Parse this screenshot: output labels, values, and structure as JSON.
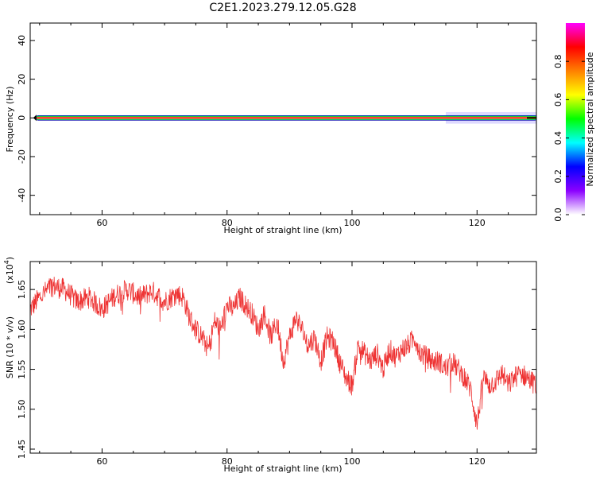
{
  "title": "C2E1.2023.279.12.05.G28",
  "chart_data": [
    {
      "type": "heatmap",
      "xlabel": "Height of straight line (km)",
      "ylabel": "Frequency (Hz)",
      "xlim": [
        48.5,
        129.5
      ],
      "ylim": [
        -50,
        49
      ],
      "xticks": [
        60,
        80,
        100,
        120
      ],
      "xtick_labels": [
        "60",
        "80",
        "100",
        "120"
      ],
      "yticks": [
        -40,
        -20,
        0,
        20,
        40
      ],
      "ytick_labels": [
        "-40",
        "-20",
        "0",
        "20",
        "40"
      ],
      "band": {
        "center_hz": 0,
        "half_width_hz": 1.2,
        "start_km": 49.5,
        "end_km": 129.5
      },
      "grid": false,
      "colorbar": {
        "label": "Normalized spectral amplitude",
        "range": [
          0,
          1
        ],
        "ticks": [
          0.0,
          0.2,
          0.4,
          0.6,
          0.8
        ],
        "tick_labels": [
          "0.0",
          "0.2",
          "0.4",
          "0.6",
          "0.8"
        ],
        "colors": [
          "#ffffff",
          "#8b00ff",
          "#0000ff",
          "#00ffff",
          "#00ff00",
          "#ffff00",
          "#ff8000",
          "#ff0000",
          "#ff00ff"
        ]
      }
    },
    {
      "type": "line",
      "xlabel": "Height of straight line (km)",
      "ylabel": "SNR (10 * v/v)",
      "multiplier_label": "(x10",
      "multiplier_exp": "4",
      "multiplier_close": ")",
      "xlim": [
        48.5,
        129.5
      ],
      "ylim": [
        1.445,
        1.685
      ],
      "xticks": [
        60,
        80,
        100,
        120
      ],
      "xtick_labels": [
        "60",
        "80",
        "100",
        "120"
      ],
      "yticks": [
        1.45,
        1.5,
        1.55,
        1.6,
        1.65
      ],
      "ytick_labels": [
        "1.45",
        "1.50",
        "1.55",
        "1.60",
        "1.65"
      ],
      "color": "#ee3333",
      "grid": false,
      "series": [
        {
          "x": [
            48.5,
            50,
            52,
            54,
            56,
            58,
            60,
            62,
            64,
            66,
            68,
            70,
            72,
            73,
            74,
            75,
            76,
            77,
            78,
            79,
            80,
            81,
            82,
            83,
            84,
            85,
            86,
            87,
            88,
            89,
            90,
            91,
            92,
            93,
            94,
            95,
            96,
            97,
            98,
            99,
            100,
            101,
            102,
            103,
            104,
            105,
            106,
            107,
            108,
            109,
            110,
            111,
            112,
            113,
            114,
            115,
            116,
            117,
            118,
            119,
            120,
            121,
            122,
            123,
            124,
            125,
            126,
            127,
            128,
            129.5
          ],
          "y": [
            1.625,
            1.64,
            1.655,
            1.65,
            1.635,
            1.64,
            1.625,
            1.642,
            1.65,
            1.64,
            1.648,
            1.635,
            1.645,
            1.64,
            1.615,
            1.6,
            1.59,
            1.575,
            1.61,
            1.6,
            1.63,
            1.625,
            1.64,
            1.63,
            1.62,
            1.6,
            1.62,
            1.59,
            1.61,
            1.56,
            1.59,
            1.615,
            1.6,
            1.58,
            1.59,
            1.56,
            1.59,
            1.585,
            1.56,
            1.54,
            1.53,
            1.58,
            1.57,
            1.56,
            1.57,
            1.55,
            1.575,
            1.565,
            1.575,
            1.58,
            1.59,
            1.57,
            1.565,
            1.56,
            1.56,
            1.55,
            1.56,
            1.55,
            1.54,
            1.525,
            1.48,
            1.54,
            1.53,
            1.535,
            1.545,
            1.53,
            1.54,
            1.545,
            1.54,
            1.53
          ],
          "noise": 0.014,
          "resolution_km": 0.06
        }
      ]
    }
  ]
}
